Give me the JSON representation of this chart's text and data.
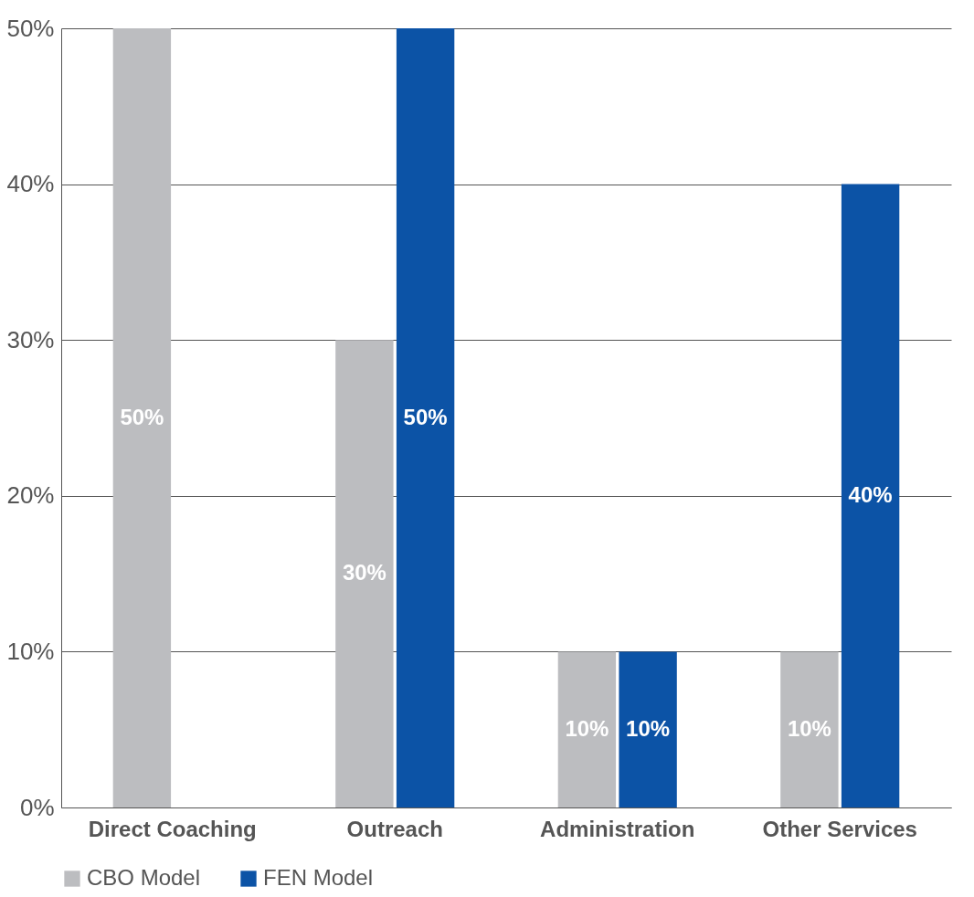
{
  "chart_data": {
    "type": "bar",
    "categories": [
      "Direct Coaching",
      "Outreach",
      "Administration",
      "Other Services"
    ],
    "series": [
      {
        "name": "CBO Model",
        "color": "#bcbdc0",
        "values": [
          50,
          30,
          10,
          10
        ],
        "value_labels": [
          "50%",
          "30%",
          "10%",
          "10%"
        ]
      },
      {
        "name": "FEN Model",
        "color": "#0c53a6",
        "values": [
          null,
          50,
          10,
          40
        ],
        "value_labels": [
          null,
          "50%",
          "10%",
          "40%"
        ]
      }
    ],
    "ylim": [
      0,
      50
    ],
    "yticks": [
      {
        "value": 0,
        "label": "0%"
      },
      {
        "value": 10,
        "label": "10%"
      },
      {
        "value": 20,
        "label": "20%"
      },
      {
        "value": 30,
        "label": "30%"
      },
      {
        "value": 40,
        "label": "40%"
      },
      {
        "value": 50,
        "label": "50%"
      }
    ],
    "grid": "y",
    "legend": "bottom"
  }
}
